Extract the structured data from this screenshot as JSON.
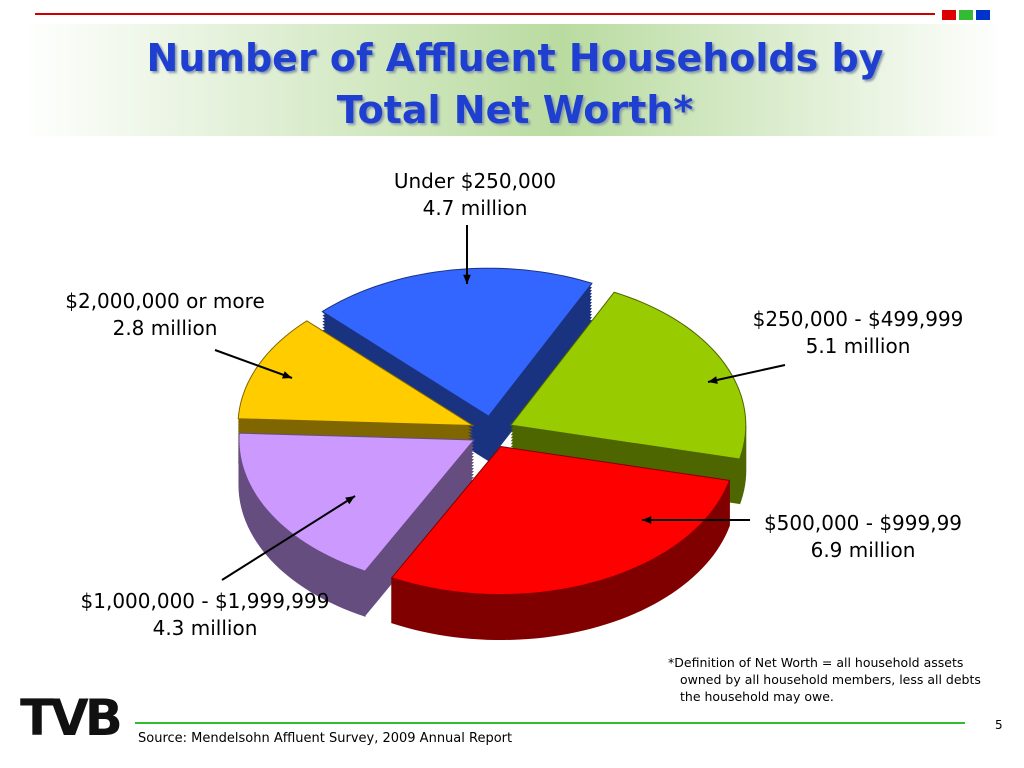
{
  "chart_data": {
    "type": "pie",
    "title": "Number of Affluent Households by Total Net Worth*",
    "categories": [
      "Under $250,000",
      "$250,000 - $499,999",
      "$500,000 - $999,99",
      "$1,000,000 - $1,999,999",
      "$2,000,000 or more"
    ],
    "values": [
      4.7,
      5.1,
      6.9,
      4.3,
      2.8
    ],
    "value_labels": [
      "4.7 million",
      "5.1 million",
      "6.9 million",
      "4.3 million",
      "2.8 million"
    ],
    "colors": [
      "#3366ff",
      "#99cc00",
      "#ff0000",
      "#cc99ff",
      "#ffcc00"
    ],
    "footnote": "*Definition of Net Worth = all household assets owned by all household members, less all debts the household may owe.",
    "source": "Source: Mendelsohn Affluent Survey, 2009 Annual Report",
    "page_number": "5",
    "logo": "TVB"
  }
}
